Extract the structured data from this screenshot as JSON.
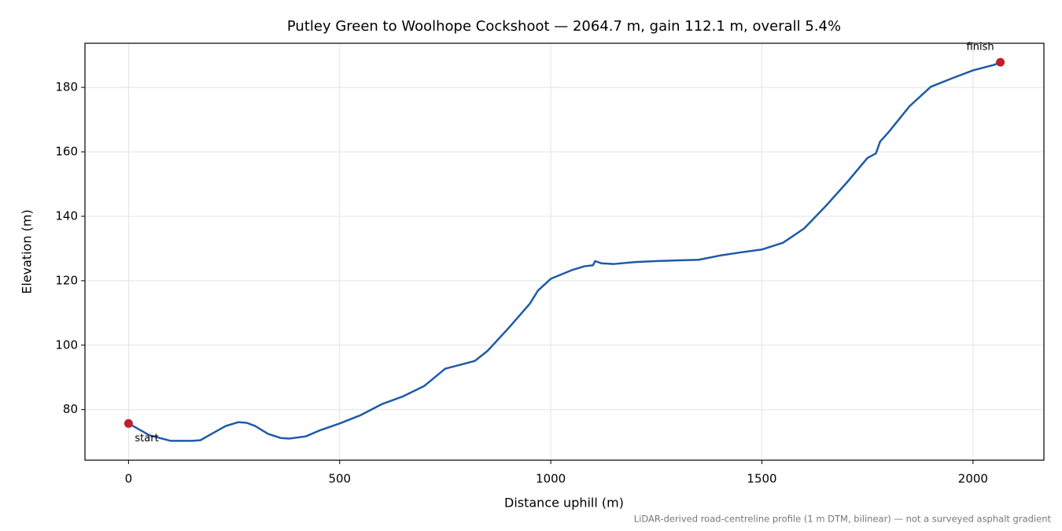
{
  "chart_data": {
    "type": "line",
    "title": "Putley Green to Woolhope Cockshoot — 2064.7 m, gain 112.1 m, overall 5.4%",
    "xlabel": "Distance uphill (m)",
    "ylabel": "Elevation (m)",
    "footnote": "LiDAR-derived road-centreline profile (1 m DTM, bilinear) — not a surveyed asphalt gradient",
    "series": [
      {
        "color": "#1f5aa8",
        "x": [
          0,
          50,
          100,
          150,
          170,
          200,
          230,
          260,
          280,
          300,
          330,
          360,
          380,
          420,
          450,
          500,
          550,
          600,
          650,
          700,
          750,
          800,
          820,
          850,
          900,
          950,
          970,
          1000,
          1050,
          1080,
          1100,
          1105,
          1120,
          1150,
          1200,
          1250,
          1300,
          1350,
          1400,
          1450,
          1500,
          1550,
          1600,
          1650,
          1700,
          1750,
          1770,
          1780,
          1800,
          1850,
          1900,
          1950,
          2000,
          2050,
          2064.7
        ],
        "values": [
          75.7,
          72.0,
          70.3,
          70.3,
          70.5,
          72.7,
          74.9,
          76.1,
          75.9,
          74.9,
          72.5,
          71.2,
          71.0,
          71.7,
          73.4,
          75.7,
          78.3,
          81.7,
          84.1,
          87.3,
          92.7,
          94.4,
          95.1,
          98.2,
          105.3,
          112.8,
          117.0,
          120.6,
          123.3,
          124.5,
          124.8,
          126.1,
          125.4,
          125.2,
          125.8,
          126.1,
          126.3,
          126.5,
          127.8,
          128.8,
          129.7,
          131.8,
          136.2,
          143.0,
          150.3,
          158.1,
          159.5,
          163.2,
          166.1,
          174.2,
          180.2,
          182.8,
          185.3,
          187.0,
          187.8
        ]
      }
    ],
    "endpoint_labels": [
      "start",
      "finish"
    ],
    "endpoint_color": "#c0202a",
    "xlim": [
      -103.2,
      2167.9
    ],
    "ylim": [
      64.3,
      193.7
    ],
    "xticks": [
      0,
      500,
      1000,
      1500,
      2000
    ],
    "yticks": [
      80,
      100,
      120,
      140,
      160,
      180
    ],
    "grid": true
  }
}
